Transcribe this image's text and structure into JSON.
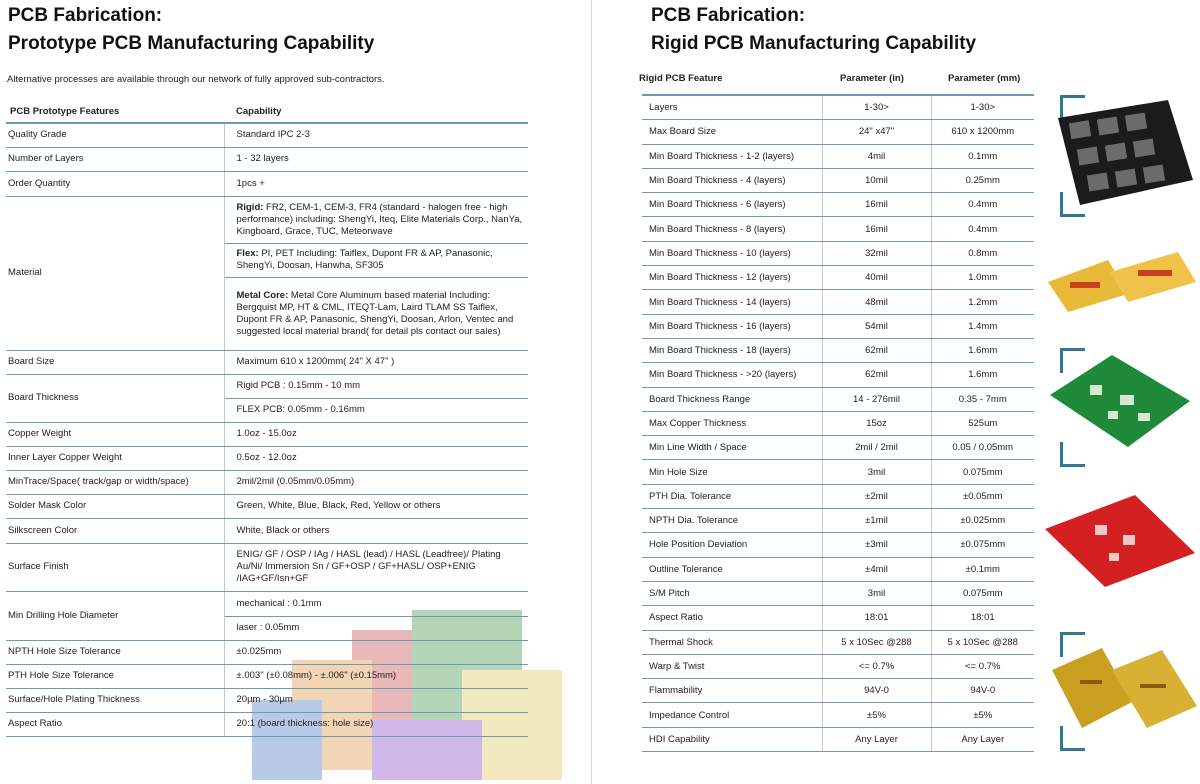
{
  "left": {
    "title_line1": "PCB Fabrication:",
    "title_line2": "Prototype PCB Manufacturing Capability",
    "intro": "Alternative processes are available through our network of fully approved sub-contractors.",
    "col_feature": "PCB Prototype Features",
    "col_capability": "Capability",
    "rows": [
      {
        "feature": "Quality Grade",
        "capability": "Standard IPC 2-3"
      },
      {
        "feature": "Number of Layers",
        "capability": "1 - 32 layers"
      },
      {
        "feature": "Order Quantity",
        "capability": "1pcs +"
      },
      {
        "feature": "Material",
        "rigid_label": "Rigid:",
        "rigid_text": " FR2, CEM-1, CEM-3, FR4 (standard - halogen free - high performance) including: ShengYi, Iteq, Elite Materials Corp., NanYa, Kingboard, Grace, TUC, Meteorwave",
        "flex_label": "Flex:",
        "flex_text": " PI, PET Including: Taiflex, Dupont FR & AP, Panasonic, ShengYi, Doosan, Hanwha, SF305",
        "metal_label": "Metal Core:",
        "metal_text": " Metal Core Aluminum based material Including: Bergquist MP, HT & CML, ITEQT-Lam, Laird TLAM SS Taiflex, Dupont FR & AP, Panasonic, ShengYi, Doosan, Arlon, Ventec and suggested local material brand( for detail pls contact our sales)"
      },
      {
        "feature": "Board Size",
        "capability": "Maximum 610 x 1200mm( 24\" X 47\" )"
      },
      {
        "feature": "Board Thickness",
        "capability_a": "Rigid PCB : 0.15mm - 10 mm",
        "capability_b": "FLEX PCB: 0.05mm - 0.16mm"
      },
      {
        "feature": "Copper Weight",
        "capability": "1.0oz - 15.0oz"
      },
      {
        "feature": "Inner Layer Copper Weight",
        "capability": "0.5oz - 12.0oz"
      },
      {
        "feature": "MinTrace/Space( track/gap or width/space)",
        "capability": "2mil/2mil (0.05mm/0.05mm)"
      },
      {
        "feature": "Solder Mask Color",
        "capability": "Green, White, Blue, Black, Red, Yellow or others"
      },
      {
        "feature": "Silkscreen Color",
        "capability": "White, Black or others"
      },
      {
        "feature": "Surface Finish",
        "capability": "ENIG/ GF / OSP / IAg / HASL (lead) / HASL (Leadfree)/ Plating Au/Ni/ Immersion Sn / GF+OSP / GF+HASL/ OSP+ENIG /IAG+GF/Isn+GF"
      },
      {
        "feature": "Min Drilling Hole Diameter",
        "capability_a": "mechanical : 0.1mm",
        "capability_b": "laser : 0.05mm"
      },
      {
        "feature": "NPTH Hole Size Tolerance",
        "capability": "±0.025mm"
      },
      {
        "feature": "PTH Hole Size Tolerance",
        "capability": "±.003\" (±0.08mm) - ±.006\" (±0.15mm)"
      },
      {
        "feature": "Surface/Hole Plating Thickness",
        "capability": "20µm - 30µm"
      },
      {
        "feature": "Aspect Ratio",
        "capability": "20:1 (board thickness: hole size)"
      }
    ]
  },
  "right": {
    "title_line1": "PCB Fabrication:",
    "title_line2": "Rigid PCB Manufacturing Capability",
    "col_feature": "Rigid PCB Feature",
    "col_in": "Parameter (in)",
    "col_mm": "Parameter (mm)",
    "rows": [
      [
        "Layers",
        "1-30>",
        "1-30>"
      ],
      [
        "Max Board Size",
        "24\" x47\"",
        "610 x 1200mm"
      ],
      [
        "Min Board Thickness - 1-2 (layers)",
        "4mil",
        "0.1mm"
      ],
      [
        "Min Board Thickness - 4 (layers)",
        "10mil",
        "0.25mm"
      ],
      [
        "Min Board Thickness - 6 (layers)",
        "16mil",
        "0.4mm"
      ],
      [
        "Min Board Thickness - 8 (layers)",
        "16mil",
        "0.4mm"
      ],
      [
        "Min Board Thickness - 10 (layers)",
        "32mil",
        "0.8mm"
      ],
      [
        "Min Board Thickness - 12 (layers)",
        "40mil",
        "1.0mm"
      ],
      [
        "Min Board Thickness - 14 (layers)",
        "48mil",
        "1.2mm"
      ],
      [
        "Min Board Thickness - 16 (layers)",
        "54mil",
        "1.4mm"
      ],
      [
        "Min Board Thickness - 18 (layers)",
        "62mil",
        "1.6mm"
      ],
      [
        "Min Board Thickness - >20 (layers)",
        "62mil",
        "1.6mm"
      ],
      [
        "Board Thickness Range",
        "14 - 276mil",
        "0.35 - 7mm"
      ],
      [
        "Max Copper Thickness",
        "15oz",
        "525um"
      ],
      [
        "Min Line Width / Space",
        "2mil / 2mil",
        "0.05 / 0.05mm"
      ],
      [
        "Min Hole Size",
        "3mil",
        "0.075mm"
      ],
      [
        "PTH Dia. Tolerance",
        "±2mil",
        "±0.05mm"
      ],
      [
        "NPTH Dia. Tolerance",
        "±1mil",
        "±0.025mm"
      ],
      [
        "Hole Position Deviation",
        "±3mil",
        "±0.075mm"
      ],
      [
        "Outline Tolerance",
        "±4mil",
        "±0.1mm"
      ],
      [
        "S/M Pitch",
        "3mil",
        "0.075mm"
      ],
      [
        "Aspect Ratio",
        "18:01",
        "18:01"
      ],
      [
        "Thermal Shock",
        "5 x 10Sec @288",
        "5 x 10Sec @288"
      ],
      [
        "Warp & Twist",
        "<= 0.7%",
        "<= 0.7%"
      ],
      [
        "Flammability",
        "94V-0",
        "94V-0"
      ],
      [
        "Impedance Control",
        "±5%",
        "±5%"
      ],
      [
        "HDI Capability",
        "Any Layer",
        "Any Layer"
      ]
    ]
  },
  "colors": {
    "rule": "#6a9bb0",
    "accent_bracket": "#2f7a92",
    "board_black": "#1b1b1b",
    "board_yellow": "#e9b93a",
    "board_green": "#1f8a3a",
    "board_red": "#d42020",
    "board_gold": "#c9a020"
  },
  "images": [
    "black-pcb-panel",
    "yellow-flex-pcb",
    "green-pcb",
    "red-pcb",
    "gold-flex-pcb"
  ]
}
